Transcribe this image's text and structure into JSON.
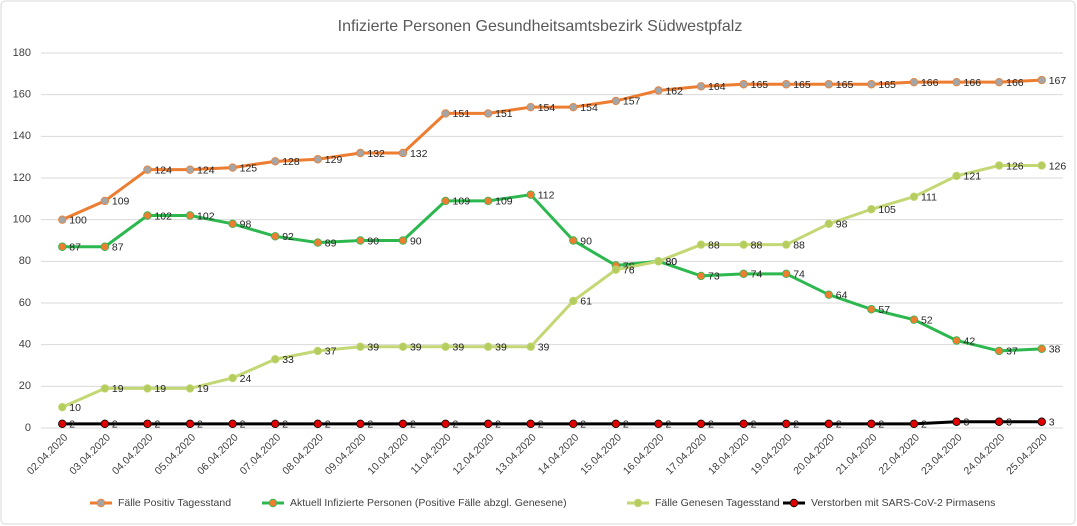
{
  "chart_data": {
    "type": "line",
    "title": "Infizierte Personen Gesundheitsamtsbezirk Südwestpfalz",
    "categories": [
      "02.04.2020",
      "03.04.2020",
      "04.04.2020",
      "05.04.2020",
      "06.04.2020",
      "07.04.2020",
      "08.04.2020",
      "09.04.2020",
      "10.04.2020",
      "11.04.2020",
      "12.04.2020",
      "13.04.2020",
      "14.04.2020",
      "15.04.2020",
      "16.04.2020",
      "17.04.2020",
      "18.04.2020",
      "19.04.2020",
      "20.04.2020",
      "21.04.2020",
      "22.04.2020",
      "23.04.2020",
      "24.04.2020",
      "25.04.2020"
    ],
    "series": [
      {
        "name": "Fälle Positiv Tagesstand",
        "color": "#ED7D31",
        "marker_color": "#A5A5A5",
        "values": [
          100,
          109,
          124,
          124,
          125,
          128,
          129,
          132,
          132,
          151,
          151,
          154,
          154,
          157,
          162,
          164,
          165,
          165,
          165,
          165,
          166,
          166,
          166,
          167
        ]
      },
      {
        "name": "Aktuell Infizierte Personen (Positive Fälle abzgl. Genesene)",
        "color": "#2DB84F",
        "marker_color": "#ED7D31",
        "values": [
          87,
          87,
          102,
          102,
          98,
          92,
          89,
          90,
          90,
          109,
          109,
          112,
          90,
          78,
          80,
          73,
          74,
          74,
          64,
          57,
          52,
          42,
          37,
          38
        ]
      },
      {
        "name": "Fälle Genesen Tagesstand",
        "color": "#C3D774",
        "marker_color": "#B5CC5F",
        "values": [
          10,
          19,
          19,
          19,
          24,
          33,
          37,
          39,
          39,
          39,
          39,
          39,
          61,
          76,
          80,
          88,
          88,
          88,
          98,
          105,
          111,
          121,
          126,
          126
        ]
      },
      {
        "name": "Verstorben mit SARS-CoV-2 Pirmasens",
        "color": "#000000",
        "marker_color": "#E00000",
        "values": [
          2,
          2,
          2,
          2,
          2,
          2,
          2,
          2,
          2,
          2,
          2,
          2,
          2,
          2,
          2,
          2,
          2,
          2,
          2,
          2,
          2,
          3,
          3,
          3
        ]
      }
    ],
    "ylim": [
      0,
      180
    ],
    "yticks": [
      0,
      20,
      40,
      60,
      80,
      100,
      120,
      140,
      160,
      180
    ],
    "grid": true,
    "legend": "bottom"
  }
}
